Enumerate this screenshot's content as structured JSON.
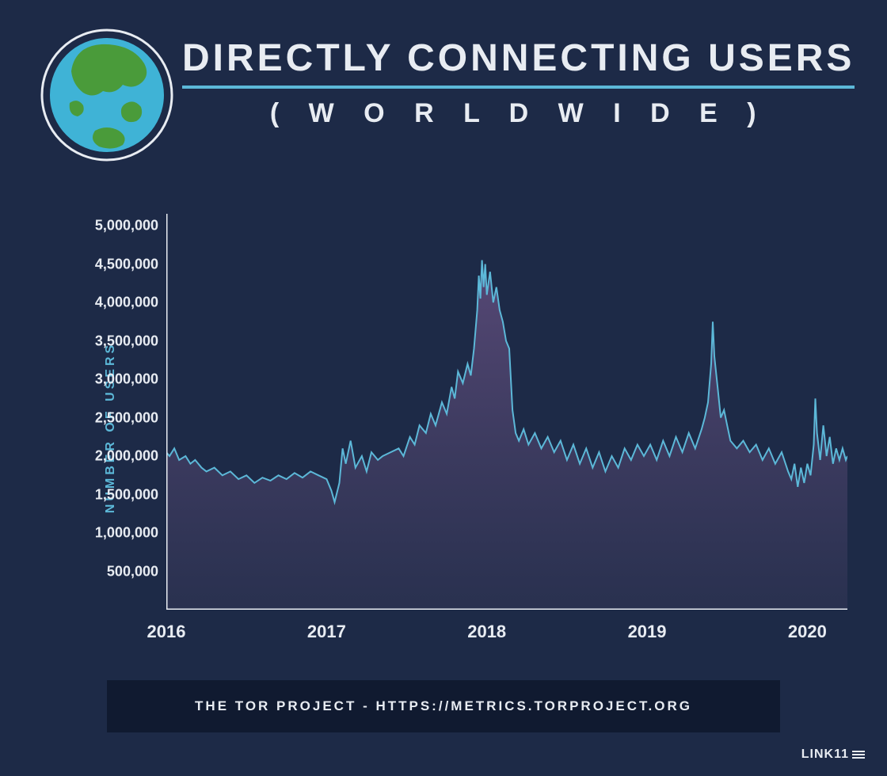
{
  "header": {
    "title": "DIRECTLY CONNECTING USERS",
    "subtitle": "( W O R L D W I D E )",
    "globe": {
      "ocean_fill": "#3fb3d6",
      "land_fill": "#4a9b3a",
      "ring_stroke": "#e8ecf2",
      "ring_bg": "#1d2a47"
    }
  },
  "chart": {
    "type": "area",
    "background_color": "#1d2a47",
    "line_color": "#5cb8d8",
    "line_width": 2,
    "area_fill_top": "#5a4a78",
    "area_fill_bottom": "#2d3352",
    "axis_color": "#e8ecf2",
    "axis_width": 3,
    "y_axis": {
      "title": "NUMBER OF USERS",
      "title_color": "#5cb8d8",
      "min": 0,
      "max": 5000000,
      "tick_step": 500000,
      "tick_labels": [
        "500,000",
        "1,000,000",
        "1,500,000",
        "2,000,000",
        "2,500,000",
        "3,000,000",
        "3,500,000",
        "4,000,000",
        "4,500,000",
        "5,000,000"
      ],
      "tick_values": [
        500000,
        1000000,
        1500000,
        2000000,
        2500000,
        3000000,
        3500000,
        4000000,
        4500000,
        5000000
      ],
      "label_color": "#e8ecf2",
      "label_fontsize": 18
    },
    "x_axis": {
      "min": 2016,
      "max": 2020.25,
      "tick_labels": [
        "2016",
        "2017",
        "2018",
        "2019",
        "2020"
      ],
      "tick_values": [
        2016,
        2017,
        2018,
        2019,
        2020
      ],
      "label_color": "#e8ecf2",
      "label_fontsize": 22
    },
    "series": [
      {
        "x": 2016.0,
        "y": 2050000
      },
      {
        "x": 2016.02,
        "y": 2000000
      },
      {
        "x": 2016.05,
        "y": 2100000
      },
      {
        "x": 2016.08,
        "y": 1950000
      },
      {
        "x": 2016.12,
        "y": 2000000
      },
      {
        "x": 2016.15,
        "y": 1900000
      },
      {
        "x": 2016.18,
        "y": 1950000
      },
      {
        "x": 2016.22,
        "y": 1850000
      },
      {
        "x": 2016.25,
        "y": 1800000
      },
      {
        "x": 2016.3,
        "y": 1850000
      },
      {
        "x": 2016.35,
        "y": 1750000
      },
      {
        "x": 2016.4,
        "y": 1800000
      },
      {
        "x": 2016.45,
        "y": 1700000
      },
      {
        "x": 2016.5,
        "y": 1750000
      },
      {
        "x": 2016.55,
        "y": 1650000
      },
      {
        "x": 2016.6,
        "y": 1720000
      },
      {
        "x": 2016.65,
        "y": 1680000
      },
      {
        "x": 2016.7,
        "y": 1750000
      },
      {
        "x": 2016.75,
        "y": 1700000
      },
      {
        "x": 2016.8,
        "y": 1780000
      },
      {
        "x": 2016.85,
        "y": 1720000
      },
      {
        "x": 2016.9,
        "y": 1800000
      },
      {
        "x": 2016.95,
        "y": 1750000
      },
      {
        "x": 2017.0,
        "y": 1700000
      },
      {
        "x": 2017.03,
        "y": 1550000
      },
      {
        "x": 2017.05,
        "y": 1400000
      },
      {
        "x": 2017.08,
        "y": 1650000
      },
      {
        "x": 2017.1,
        "y": 2100000
      },
      {
        "x": 2017.12,
        "y": 1900000
      },
      {
        "x": 2017.15,
        "y": 2200000
      },
      {
        "x": 2017.18,
        "y": 1850000
      },
      {
        "x": 2017.22,
        "y": 2000000
      },
      {
        "x": 2017.25,
        "y": 1800000
      },
      {
        "x": 2017.28,
        "y": 2050000
      },
      {
        "x": 2017.32,
        "y": 1950000
      },
      {
        "x": 2017.35,
        "y": 2000000
      },
      {
        "x": 2017.4,
        "y": 2050000
      },
      {
        "x": 2017.45,
        "y": 2100000
      },
      {
        "x": 2017.48,
        "y": 2000000
      },
      {
        "x": 2017.52,
        "y": 2250000
      },
      {
        "x": 2017.55,
        "y": 2150000
      },
      {
        "x": 2017.58,
        "y": 2400000
      },
      {
        "x": 2017.62,
        "y": 2300000
      },
      {
        "x": 2017.65,
        "y": 2550000
      },
      {
        "x": 2017.68,
        "y": 2400000
      },
      {
        "x": 2017.72,
        "y": 2700000
      },
      {
        "x": 2017.75,
        "y": 2550000
      },
      {
        "x": 2017.78,
        "y": 2900000
      },
      {
        "x": 2017.8,
        "y": 2750000
      },
      {
        "x": 2017.82,
        "y": 3100000
      },
      {
        "x": 2017.85,
        "y": 2950000
      },
      {
        "x": 2017.88,
        "y": 3200000
      },
      {
        "x": 2017.9,
        "y": 3050000
      },
      {
        "x": 2017.92,
        "y": 3400000
      },
      {
        "x": 2017.94,
        "y": 3900000
      },
      {
        "x": 2017.95,
        "y": 4350000
      },
      {
        "x": 2017.96,
        "y": 4050000
      },
      {
        "x": 2017.97,
        "y": 4550000
      },
      {
        "x": 2017.98,
        "y": 4200000
      },
      {
        "x": 2017.99,
        "y": 4500000
      },
      {
        "x": 2018.0,
        "y": 4100000
      },
      {
        "x": 2018.02,
        "y": 4400000
      },
      {
        "x": 2018.04,
        "y": 4000000
      },
      {
        "x": 2018.06,
        "y": 4200000
      },
      {
        "x": 2018.08,
        "y": 3900000
      },
      {
        "x": 2018.1,
        "y": 3750000
      },
      {
        "x": 2018.12,
        "y": 3500000
      },
      {
        "x": 2018.14,
        "y": 3400000
      },
      {
        "x": 2018.16,
        "y": 2600000
      },
      {
        "x": 2018.18,
        "y": 2300000
      },
      {
        "x": 2018.2,
        "y": 2200000
      },
      {
        "x": 2018.23,
        "y": 2350000
      },
      {
        "x": 2018.26,
        "y": 2150000
      },
      {
        "x": 2018.3,
        "y": 2300000
      },
      {
        "x": 2018.34,
        "y": 2100000
      },
      {
        "x": 2018.38,
        "y": 2250000
      },
      {
        "x": 2018.42,
        "y": 2050000
      },
      {
        "x": 2018.46,
        "y": 2200000
      },
      {
        "x": 2018.5,
        "y": 1950000
      },
      {
        "x": 2018.54,
        "y": 2150000
      },
      {
        "x": 2018.58,
        "y": 1900000
      },
      {
        "x": 2018.62,
        "y": 2100000
      },
      {
        "x": 2018.66,
        "y": 1850000
      },
      {
        "x": 2018.7,
        "y": 2050000
      },
      {
        "x": 2018.74,
        "y": 1800000
      },
      {
        "x": 2018.78,
        "y": 2000000
      },
      {
        "x": 2018.82,
        "y": 1850000
      },
      {
        "x": 2018.86,
        "y": 2100000
      },
      {
        "x": 2018.9,
        "y": 1950000
      },
      {
        "x": 2018.94,
        "y": 2150000
      },
      {
        "x": 2018.98,
        "y": 2000000
      },
      {
        "x": 2019.02,
        "y": 2150000
      },
      {
        "x": 2019.06,
        "y": 1950000
      },
      {
        "x": 2019.1,
        "y": 2200000
      },
      {
        "x": 2019.14,
        "y": 2000000
      },
      {
        "x": 2019.18,
        "y": 2250000
      },
      {
        "x": 2019.22,
        "y": 2050000
      },
      {
        "x": 2019.26,
        "y": 2300000
      },
      {
        "x": 2019.3,
        "y": 2100000
      },
      {
        "x": 2019.34,
        "y": 2350000
      },
      {
        "x": 2019.36,
        "y": 2500000
      },
      {
        "x": 2019.38,
        "y": 2700000
      },
      {
        "x": 2019.4,
        "y": 3200000
      },
      {
        "x": 2019.41,
        "y": 3750000
      },
      {
        "x": 2019.42,
        "y": 3300000
      },
      {
        "x": 2019.44,
        "y": 2900000
      },
      {
        "x": 2019.46,
        "y": 2500000
      },
      {
        "x": 2019.48,
        "y": 2600000
      },
      {
        "x": 2019.5,
        "y": 2400000
      },
      {
        "x": 2019.52,
        "y": 2200000
      },
      {
        "x": 2019.56,
        "y": 2100000
      },
      {
        "x": 2019.6,
        "y": 2200000
      },
      {
        "x": 2019.64,
        "y": 2050000
      },
      {
        "x": 2019.68,
        "y": 2150000
      },
      {
        "x": 2019.72,
        "y": 1950000
      },
      {
        "x": 2019.76,
        "y": 2100000
      },
      {
        "x": 2019.8,
        "y": 1900000
      },
      {
        "x": 2019.84,
        "y": 2050000
      },
      {
        "x": 2019.88,
        "y": 1800000
      },
      {
        "x": 2019.9,
        "y": 1700000
      },
      {
        "x": 2019.92,
        "y": 1900000
      },
      {
        "x": 2019.94,
        "y": 1600000
      },
      {
        "x": 2019.96,
        "y": 1850000
      },
      {
        "x": 2019.98,
        "y": 1650000
      },
      {
        "x": 2020.0,
        "y": 1900000
      },
      {
        "x": 2020.02,
        "y": 1750000
      },
      {
        "x": 2020.04,
        "y": 2150000
      },
      {
        "x": 2020.05,
        "y": 2750000
      },
      {
        "x": 2020.06,
        "y": 2300000
      },
      {
        "x": 2020.08,
        "y": 1950000
      },
      {
        "x": 2020.1,
        "y": 2400000
      },
      {
        "x": 2020.12,
        "y": 2000000
      },
      {
        "x": 2020.14,
        "y": 2250000
      },
      {
        "x": 2020.16,
        "y": 1900000
      },
      {
        "x": 2020.18,
        "y": 2100000
      },
      {
        "x": 2020.2,
        "y": 1950000
      },
      {
        "x": 2020.22,
        "y": 2100000
      },
      {
        "x": 2020.24,
        "y": 1950000
      },
      {
        "x": 2020.25,
        "y": 2000000
      }
    ]
  },
  "footer": {
    "text": "THE TOR PROJECT - HTTPS://METRICS.TORPROJECT.ORG",
    "band_bg": "#101a30"
  },
  "brand": {
    "text": "LINK11"
  }
}
